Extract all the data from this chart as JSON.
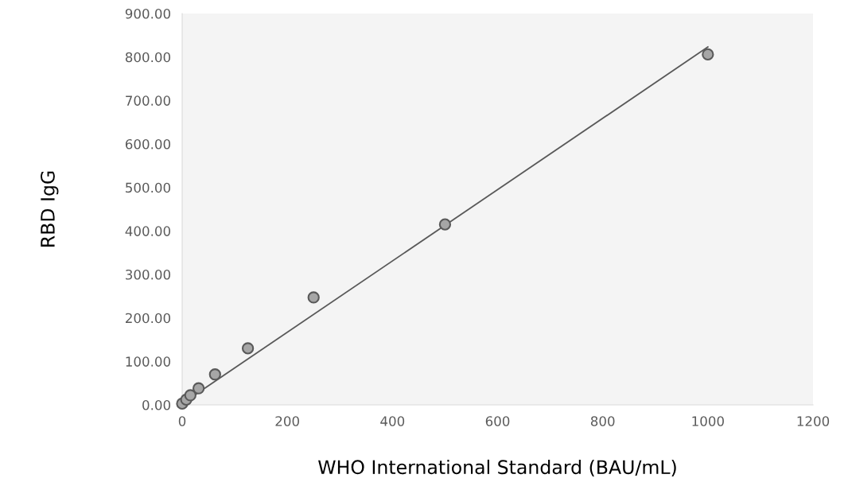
{
  "chart_data": {
    "type": "scatter",
    "xlabel": "WHO International Standard (BAU/mL)",
    "ylabel": "RBD IgG",
    "xlim": [
      0,
      1200
    ],
    "xticks": [
      0,
      200,
      400,
      600,
      800,
      1000,
      1200
    ],
    "ylim": [
      0,
      900
    ],
    "yticks": [
      {
        "value": 0,
        "label": "0.00"
      },
      {
        "value": 100,
        "label": "100.00"
      },
      {
        "value": 200,
        "label": "200.00"
      },
      {
        "value": 300,
        "label": "300.00"
      },
      {
        "value": 400,
        "label": "400.00"
      },
      {
        "value": 500,
        "label": "500.00"
      },
      {
        "value": 600,
        "label": "600.00"
      },
      {
        "value": 700,
        "label": "700.00"
      },
      {
        "value": 800,
        "label": "800.00"
      },
      {
        "value": 900,
        "label": "900.00"
      }
    ],
    "grid": false,
    "legend": false,
    "series": [
      {
        "marker": "circle",
        "color": "#a6a6a6",
        "x": [
          0,
          7.8,
          15.6,
          31.25,
          62.5,
          125,
          250,
          500,
          1000
        ],
        "values": [
          3,
          12,
          22,
          38,
          70,
          130,
          247,
          415,
          806
        ]
      },
      {
        "type": "line",
        "marker": "none",
        "color": "#595959",
        "x": [
          0,
          1000
        ],
        "values": [
          3,
          823
        ]
      }
    ]
  }
}
